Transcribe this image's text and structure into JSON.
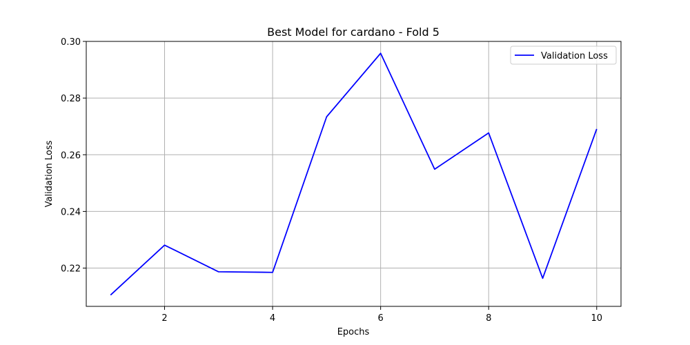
{
  "chart_data": {
    "type": "line",
    "title": "Best Model for cardano - Fold 5",
    "xlabel": "Epochs",
    "ylabel": "Validation Loss",
    "x": [
      1,
      2,
      3,
      4,
      5,
      6,
      7,
      8,
      9,
      10
    ],
    "series": [
      {
        "name": "Validation Loss",
        "color": "#0000ff",
        "values": [
          0.2105,
          0.2281,
          0.2187,
          0.2185,
          0.2734,
          0.2958,
          0.2549,
          0.2677,
          0.2164,
          0.2691
        ]
      }
    ],
    "xlim": [
      0.55,
      10.45
    ],
    "ylim": [
      0.2065,
      0.3
    ],
    "xticks": [
      2,
      4,
      6,
      8,
      10
    ],
    "xtick_labels": [
      "2",
      "4",
      "6",
      "8",
      "10"
    ],
    "yticks": [
      0.22,
      0.24,
      0.26,
      0.28,
      0.3
    ],
    "ytick_labels": [
      "0.22",
      "0.24",
      "0.26",
      "0.28",
      "0.30"
    ],
    "grid": true,
    "legend_position": "top-right"
  }
}
